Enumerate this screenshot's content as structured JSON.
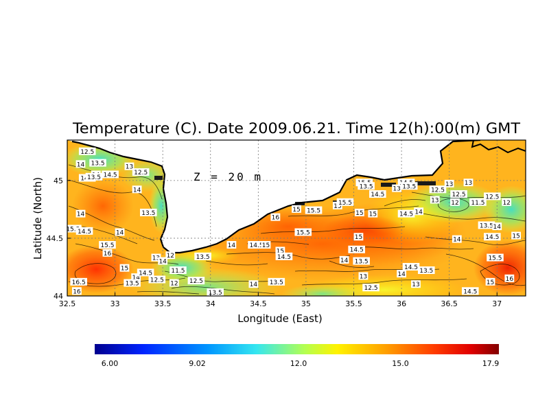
{
  "chart_data": {
    "type": "heatmap",
    "title": "Temperature (C). Date 2009.06.21. Time 12(h):00(m) GMT",
    "xlabel": "Longitude (East)",
    "ylabel": "Latitude (North)",
    "annotation": "Z = 20 m",
    "xlim": [
      32.5,
      37.3
    ],
    "ylim": [
      44.0,
      45.35
    ],
    "x_ticks": [
      "32.5",
      "33",
      "33.5",
      "34",
      "34.5",
      "35",
      "35.5",
      "36",
      "36.5",
      "37"
    ],
    "x_tick_values": [
      32.5,
      33,
      33.5,
      34,
      34.5,
      35,
      35.5,
      36,
      36.5,
      37
    ],
    "y_ticks": [
      "44",
      "44.5",
      "45"
    ],
    "y_tick_values": [
      44.0,
      44.5,
      45.0
    ],
    "grid": true,
    "colorbar": {
      "min": 6.0,
      "max": 17.9,
      "tick_labels": [
        "6.00",
        "9.02",
        "12.0",
        "15.0",
        "17.9"
      ],
      "tick_values": [
        6.0,
        9.02,
        12.0,
        15.0,
        17.9
      ]
    },
    "contour_labels": [
      {
        "lon": 32.71,
        "lat": 45.25,
        "text": "12.5"
      },
      {
        "lon": 32.64,
        "lat": 45.14,
        "text": "14"
      },
      {
        "lon": 32.82,
        "lat": 45.15,
        "text": "13.5"
      },
      {
        "lon": 32.8,
        "lat": 45.05,
        "text": "14"
      },
      {
        "lon": 32.71,
        "lat": 45.02,
        "text": "14.5"
      },
      {
        "lon": 32.78,
        "lat": 45.03,
        "text": "13.5"
      },
      {
        "lon": 32.95,
        "lat": 45.05,
        "text": "14.5"
      },
      {
        "lon": 33.15,
        "lat": 45.12,
        "text": "13"
      },
      {
        "lon": 33.27,
        "lat": 45.07,
        "text": "12.5"
      },
      {
        "lon": 33.23,
        "lat": 44.92,
        "text": "14"
      },
      {
        "lon": 33.35,
        "lat": 44.72,
        "text": "13.5"
      },
      {
        "lon": 32.64,
        "lat": 44.71,
        "text": "14"
      },
      {
        "lon": 32.56,
        "lat": 44.58,
        "text": "15.5"
      },
      {
        "lon": 32.68,
        "lat": 44.56,
        "text": "14.5"
      },
      {
        "lon": 33.05,
        "lat": 44.55,
        "text": "14"
      },
      {
        "lon": 32.92,
        "lat": 44.44,
        "text": "15.5"
      },
      {
        "lon": 32.92,
        "lat": 44.37,
        "text": "16"
      },
      {
        "lon": 33.1,
        "lat": 44.24,
        "text": "15"
      },
      {
        "lon": 33.22,
        "lat": 44.16,
        "text": "14"
      },
      {
        "lon": 33.18,
        "lat": 44.11,
        "text": "13.5"
      },
      {
        "lon": 33.32,
        "lat": 44.2,
        "text": "14.5"
      },
      {
        "lon": 33.44,
        "lat": 44.14,
        "text": "12.5"
      },
      {
        "lon": 33.43,
        "lat": 44.33,
        "text": "13"
      },
      {
        "lon": 33.5,
        "lat": 44.3,
        "text": "14"
      },
      {
        "lon": 33.58,
        "lat": 44.35,
        "text": "12"
      },
      {
        "lon": 33.66,
        "lat": 44.22,
        "text": "11.5"
      },
      {
        "lon": 33.62,
        "lat": 44.11,
        "text": "12"
      },
      {
        "lon": 33.85,
        "lat": 44.13,
        "text": "12.5"
      },
      {
        "lon": 33.92,
        "lat": 44.34,
        "text": "13.5"
      },
      {
        "lon": 33.72,
        "lat": 44.0,
        "text": "12"
      },
      {
        "lon": 33.85,
        "lat": 44.0,
        "text": "12.5"
      },
      {
        "lon": 34.05,
        "lat": 44.03,
        "text": "13.5"
      },
      {
        "lon": 34.2,
        "lat": 44.01,
        "text": "14"
      },
      {
        "lon": 34.22,
        "lat": 44.44,
        "text": "14"
      },
      {
        "lon": 34.48,
        "lat": 44.44,
        "text": "14.5"
      },
      {
        "lon": 34.58,
        "lat": 44.44,
        "text": "15"
      },
      {
        "lon": 34.45,
        "lat": 44.1,
        "text": "14"
      },
      {
        "lon": 34.69,
        "lat": 44.12,
        "text": "13.5"
      },
      {
        "lon": 34.73,
        "lat": 44.39,
        "text": "15"
      },
      {
        "lon": 34.77,
        "lat": 44.34,
        "text": "14.5"
      },
      {
        "lon": 34.68,
        "lat": 44.68,
        "text": "16"
      },
      {
        "lon": 34.9,
        "lat": 44.75,
        "text": "15"
      },
      {
        "lon": 35.08,
        "lat": 44.74,
        "text": "15.5"
      },
      {
        "lon": 34.97,
        "lat": 44.55,
        "text": "15.5"
      },
      {
        "lon": 35.33,
        "lat": 44.78,
        "text": "15"
      },
      {
        "lon": 35.41,
        "lat": 44.81,
        "text": "15.5"
      },
      {
        "lon": 35.56,
        "lat": 44.72,
        "text": "15"
      },
      {
        "lon": 35.7,
        "lat": 44.71,
        "text": "15"
      },
      {
        "lon": 35.55,
        "lat": 44.51,
        "text": "15"
      },
      {
        "lon": 35.53,
        "lat": 44.4,
        "text": "14.5"
      },
      {
        "lon": 35.4,
        "lat": 44.31,
        "text": "14"
      },
      {
        "lon": 35.58,
        "lat": 44.3,
        "text": "13.5"
      },
      {
        "lon": 35.6,
        "lat": 44.17,
        "text": "13"
      },
      {
        "lon": 35.68,
        "lat": 44.07,
        "text": "12.5"
      },
      {
        "lon": 35.45,
        "lat": 43.99,
        "text": "13.5"
      },
      {
        "lon": 35.61,
        "lat": 44.98,
        "text": "15.5"
      },
      {
        "lon": 35.63,
        "lat": 44.95,
        "text": "13.5"
      },
      {
        "lon": 35.75,
        "lat": 44.88,
        "text": "14.5"
      },
      {
        "lon": 35.95,
        "lat": 44.93,
        "text": "13"
      },
      {
        "lon": 36.05,
        "lat": 44.98,
        "text": "14.5"
      },
      {
        "lon": 36.05,
        "lat": 44.71,
        "text": "14.5"
      },
      {
        "lon": 36.18,
        "lat": 44.73,
        "text": "14"
      },
      {
        "lon": 36.08,
        "lat": 44.95,
        "text": "13.5"
      },
      {
        "lon": 36.35,
        "lat": 44.83,
        "text": "13"
      },
      {
        "lon": 36.38,
        "lat": 44.92,
        "text": "12.5"
      },
      {
        "lon": 36.5,
        "lat": 44.97,
        "text": "13"
      },
      {
        "lon": 36.7,
        "lat": 44.98,
        "text": "13"
      },
      {
        "lon": 36.6,
        "lat": 44.88,
        "text": "12.5"
      },
      {
        "lon": 36.56,
        "lat": 44.81,
        "text": "12"
      },
      {
        "lon": 36.8,
        "lat": 44.81,
        "text": "11.5"
      },
      {
        "lon": 36.95,
        "lat": 44.86,
        "text": "12.5"
      },
      {
        "lon": 37.1,
        "lat": 44.81,
        "text": "12"
      },
      {
        "lon": 36.89,
        "lat": 44.61,
        "text": "13.5"
      },
      {
        "lon": 37.0,
        "lat": 44.6,
        "text": "14"
      },
      {
        "lon": 36.95,
        "lat": 44.51,
        "text": "14.5"
      },
      {
        "lon": 36.58,
        "lat": 44.49,
        "text": "14"
      },
      {
        "lon": 36.98,
        "lat": 44.33,
        "text": "15.5"
      },
      {
        "lon": 37.13,
        "lat": 44.15,
        "text": "16"
      },
      {
        "lon": 36.93,
        "lat": 44.12,
        "text": "15"
      },
      {
        "lon": 36.72,
        "lat": 44.04,
        "text": "14.5"
      },
      {
        "lon": 36.65,
        "lat": 44.0,
        "text": "14"
      },
      {
        "lon": 36.26,
        "lat": 44.22,
        "text": "13.5"
      },
      {
        "lon": 36.15,
        "lat": 44.1,
        "text": "13"
      },
      {
        "lon": 36.1,
        "lat": 44.25,
        "text": "14.5"
      },
      {
        "lon": 36.0,
        "lat": 44.19,
        "text": "14"
      },
      {
        "lon": 37.2,
        "lat": 44.52,
        "text": "15"
      },
      {
        "lon": 32.62,
        "lat": 44.12,
        "text": "16.5"
      },
      {
        "lon": 32.6,
        "lat": 44.04,
        "text": "16"
      },
      {
        "lon": 32.58,
        "lat": 44.0,
        "text": "16.5"
      }
    ]
  }
}
